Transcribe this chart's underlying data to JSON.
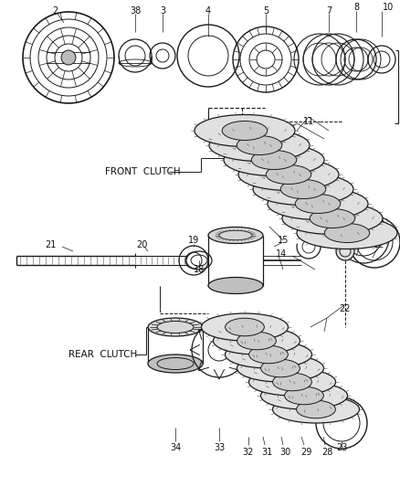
{
  "bg_color": "#ffffff",
  "line_color": "#1a1a1a",
  "label_color": "#111111",
  "lw_main": 0.9,
  "lw_thin": 0.5,
  "fig_w": 4.39,
  "fig_h": 5.33,
  "dpi": 100
}
